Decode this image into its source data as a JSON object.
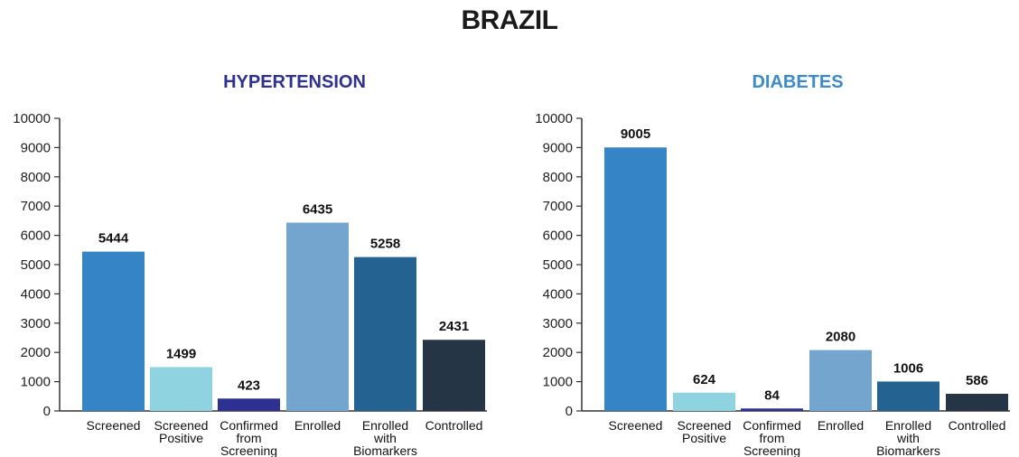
{
  "title": "BRAZIL",
  "chart_data": [
    {
      "type": "bar",
      "title": "HYPERTENSION",
      "title_color": "#2e3192",
      "xlabel": "",
      "ylabel": "",
      "ylim": [
        0,
        10000
      ],
      "yticks": [
        0,
        1000,
        2000,
        3000,
        4000,
        5000,
        6000,
        7000,
        8000,
        9000,
        10000
      ],
      "categories": [
        "Screened",
        "Screened Positive",
        "Confirmed from Screening",
        "Enrolled",
        "Enrolled with Biomarkers",
        "Controlled"
      ],
      "values": [
        5444,
        1499,
        423,
        6435,
        5258,
        2431
      ],
      "colors": [
        "#3484c6",
        "#8fd3e1",
        "#2e3192",
        "#73a5ce",
        "#236291",
        "#253545"
      ],
      "grid": false,
      "legend": "none"
    },
    {
      "type": "bar",
      "title": "DIABETES",
      "title_color": "#3b8ac9",
      "xlabel": "",
      "ylabel": "",
      "ylim": [
        0,
        10000
      ],
      "yticks": [
        0,
        1000,
        2000,
        3000,
        4000,
        5000,
        6000,
        7000,
        8000,
        9000,
        10000
      ],
      "categories": [
        "Screened",
        "Screened Positive",
        "Confirmed from Screening",
        "Enrolled",
        "Enrolled with Biomarkers",
        "Controlled"
      ],
      "values": [
        9005,
        624,
        84,
        2080,
        1006,
        586
      ],
      "colors": [
        "#3484c6",
        "#8fd3e1",
        "#2e3192",
        "#73a5ce",
        "#236291",
        "#253545"
      ],
      "grid": false,
      "legend": "none"
    }
  ]
}
